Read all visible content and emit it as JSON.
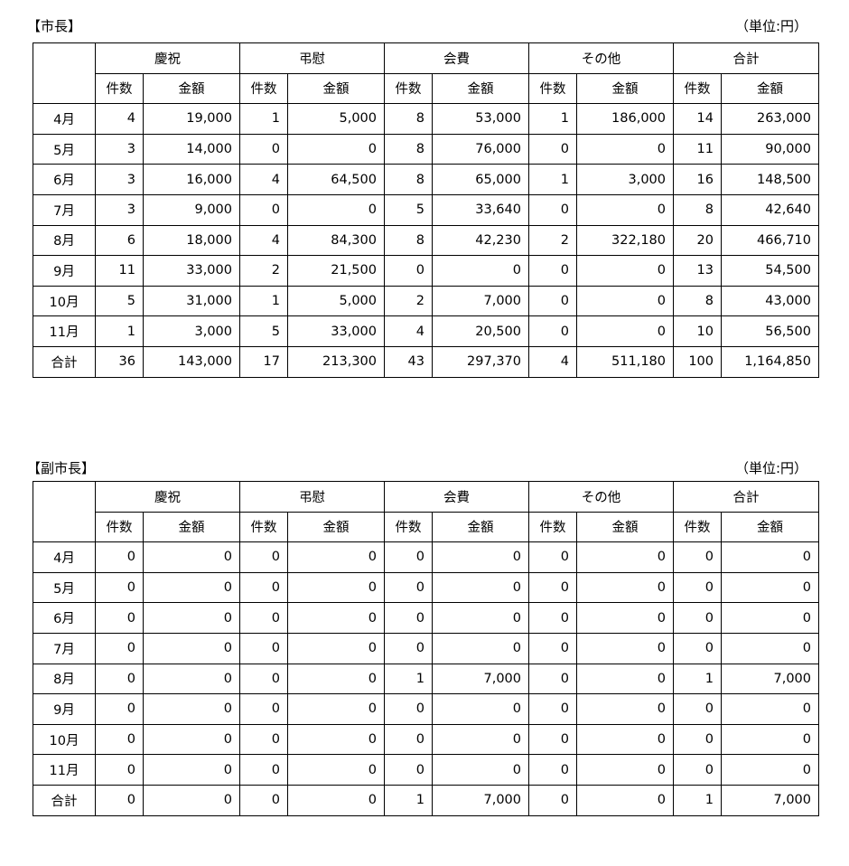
{
  "header_groups": [
    "慶祝",
    "弔慰",
    "会費",
    "その他",
    "合計"
  ],
  "sub_headers": [
    "件数",
    "金額"
  ],
  "tables": [
    {
      "title": "【市長】",
      "unit": "（単位:円）",
      "rows": [
        [
          "4月",
          "4",
          "19,000",
          "1",
          "5,000",
          "8",
          "53,000",
          "1",
          "186,000",
          "14",
          "263,000"
        ],
        [
          "5月",
          "3",
          "14,000",
          "0",
          "0",
          "8",
          "76,000",
          "0",
          "0",
          "11",
          "90,000"
        ],
        [
          "6月",
          "3",
          "16,000",
          "4",
          "64,500",
          "8",
          "65,000",
          "1",
          "3,000",
          "16",
          "148,500"
        ],
        [
          "7月",
          "3",
          "9,000",
          "0",
          "0",
          "5",
          "33,640",
          "0",
          "0",
          "8",
          "42,640"
        ],
        [
          "8月",
          "6",
          "18,000",
          "4",
          "84,300",
          "8",
          "42,230",
          "2",
          "322,180",
          "20",
          "466,710"
        ],
        [
          "9月",
          "11",
          "33,000",
          "2",
          "21,500",
          "0",
          "0",
          "0",
          "0",
          "13",
          "54,500"
        ],
        [
          "10月",
          "5",
          "31,000",
          "1",
          "5,000",
          "2",
          "7,000",
          "0",
          "0",
          "8",
          "43,000"
        ],
        [
          "11月",
          "1",
          "3,000",
          "5",
          "33,000",
          "4",
          "20,500",
          "0",
          "0",
          "10",
          "56,500"
        ],
        [
          "合計",
          "36",
          "143,000",
          "17",
          "213,300",
          "43",
          "297,370",
          "4",
          "511,180",
          "100",
          "1,164,850"
        ]
      ]
    },
    {
      "title": "【副市長】",
      "unit": "（単位:円）",
      "rows": [
        [
          "4月",
          "0",
          "0",
          "0",
          "0",
          "0",
          "0",
          "0",
          "0",
          "0",
          "0"
        ],
        [
          "5月",
          "0",
          "0",
          "0",
          "0",
          "0",
          "0",
          "0",
          "0",
          "0",
          "0"
        ],
        [
          "6月",
          "0",
          "0",
          "0",
          "0",
          "0",
          "0",
          "0",
          "0",
          "0",
          "0"
        ],
        [
          "7月",
          "0",
          "0",
          "0",
          "0",
          "0",
          "0",
          "0",
          "0",
          "0",
          "0"
        ],
        [
          "8月",
          "0",
          "0",
          "0",
          "0",
          "1",
          "7,000",
          "0",
          "0",
          "1",
          "7,000"
        ],
        [
          "9月",
          "0",
          "0",
          "0",
          "0",
          "0",
          "0",
          "0",
          "0",
          "0",
          "0"
        ],
        [
          "10月",
          "0",
          "0",
          "0",
          "0",
          "0",
          "0",
          "0",
          "0",
          "0",
          "0"
        ],
        [
          "11月",
          "0",
          "0",
          "0",
          "0",
          "0",
          "0",
          "0",
          "0",
          "0",
          "0"
        ],
        [
          "合計",
          "0",
          "0",
          "0",
          "0",
          "1",
          "7,000",
          "0",
          "0",
          "1",
          "7,000"
        ]
      ]
    }
  ]
}
